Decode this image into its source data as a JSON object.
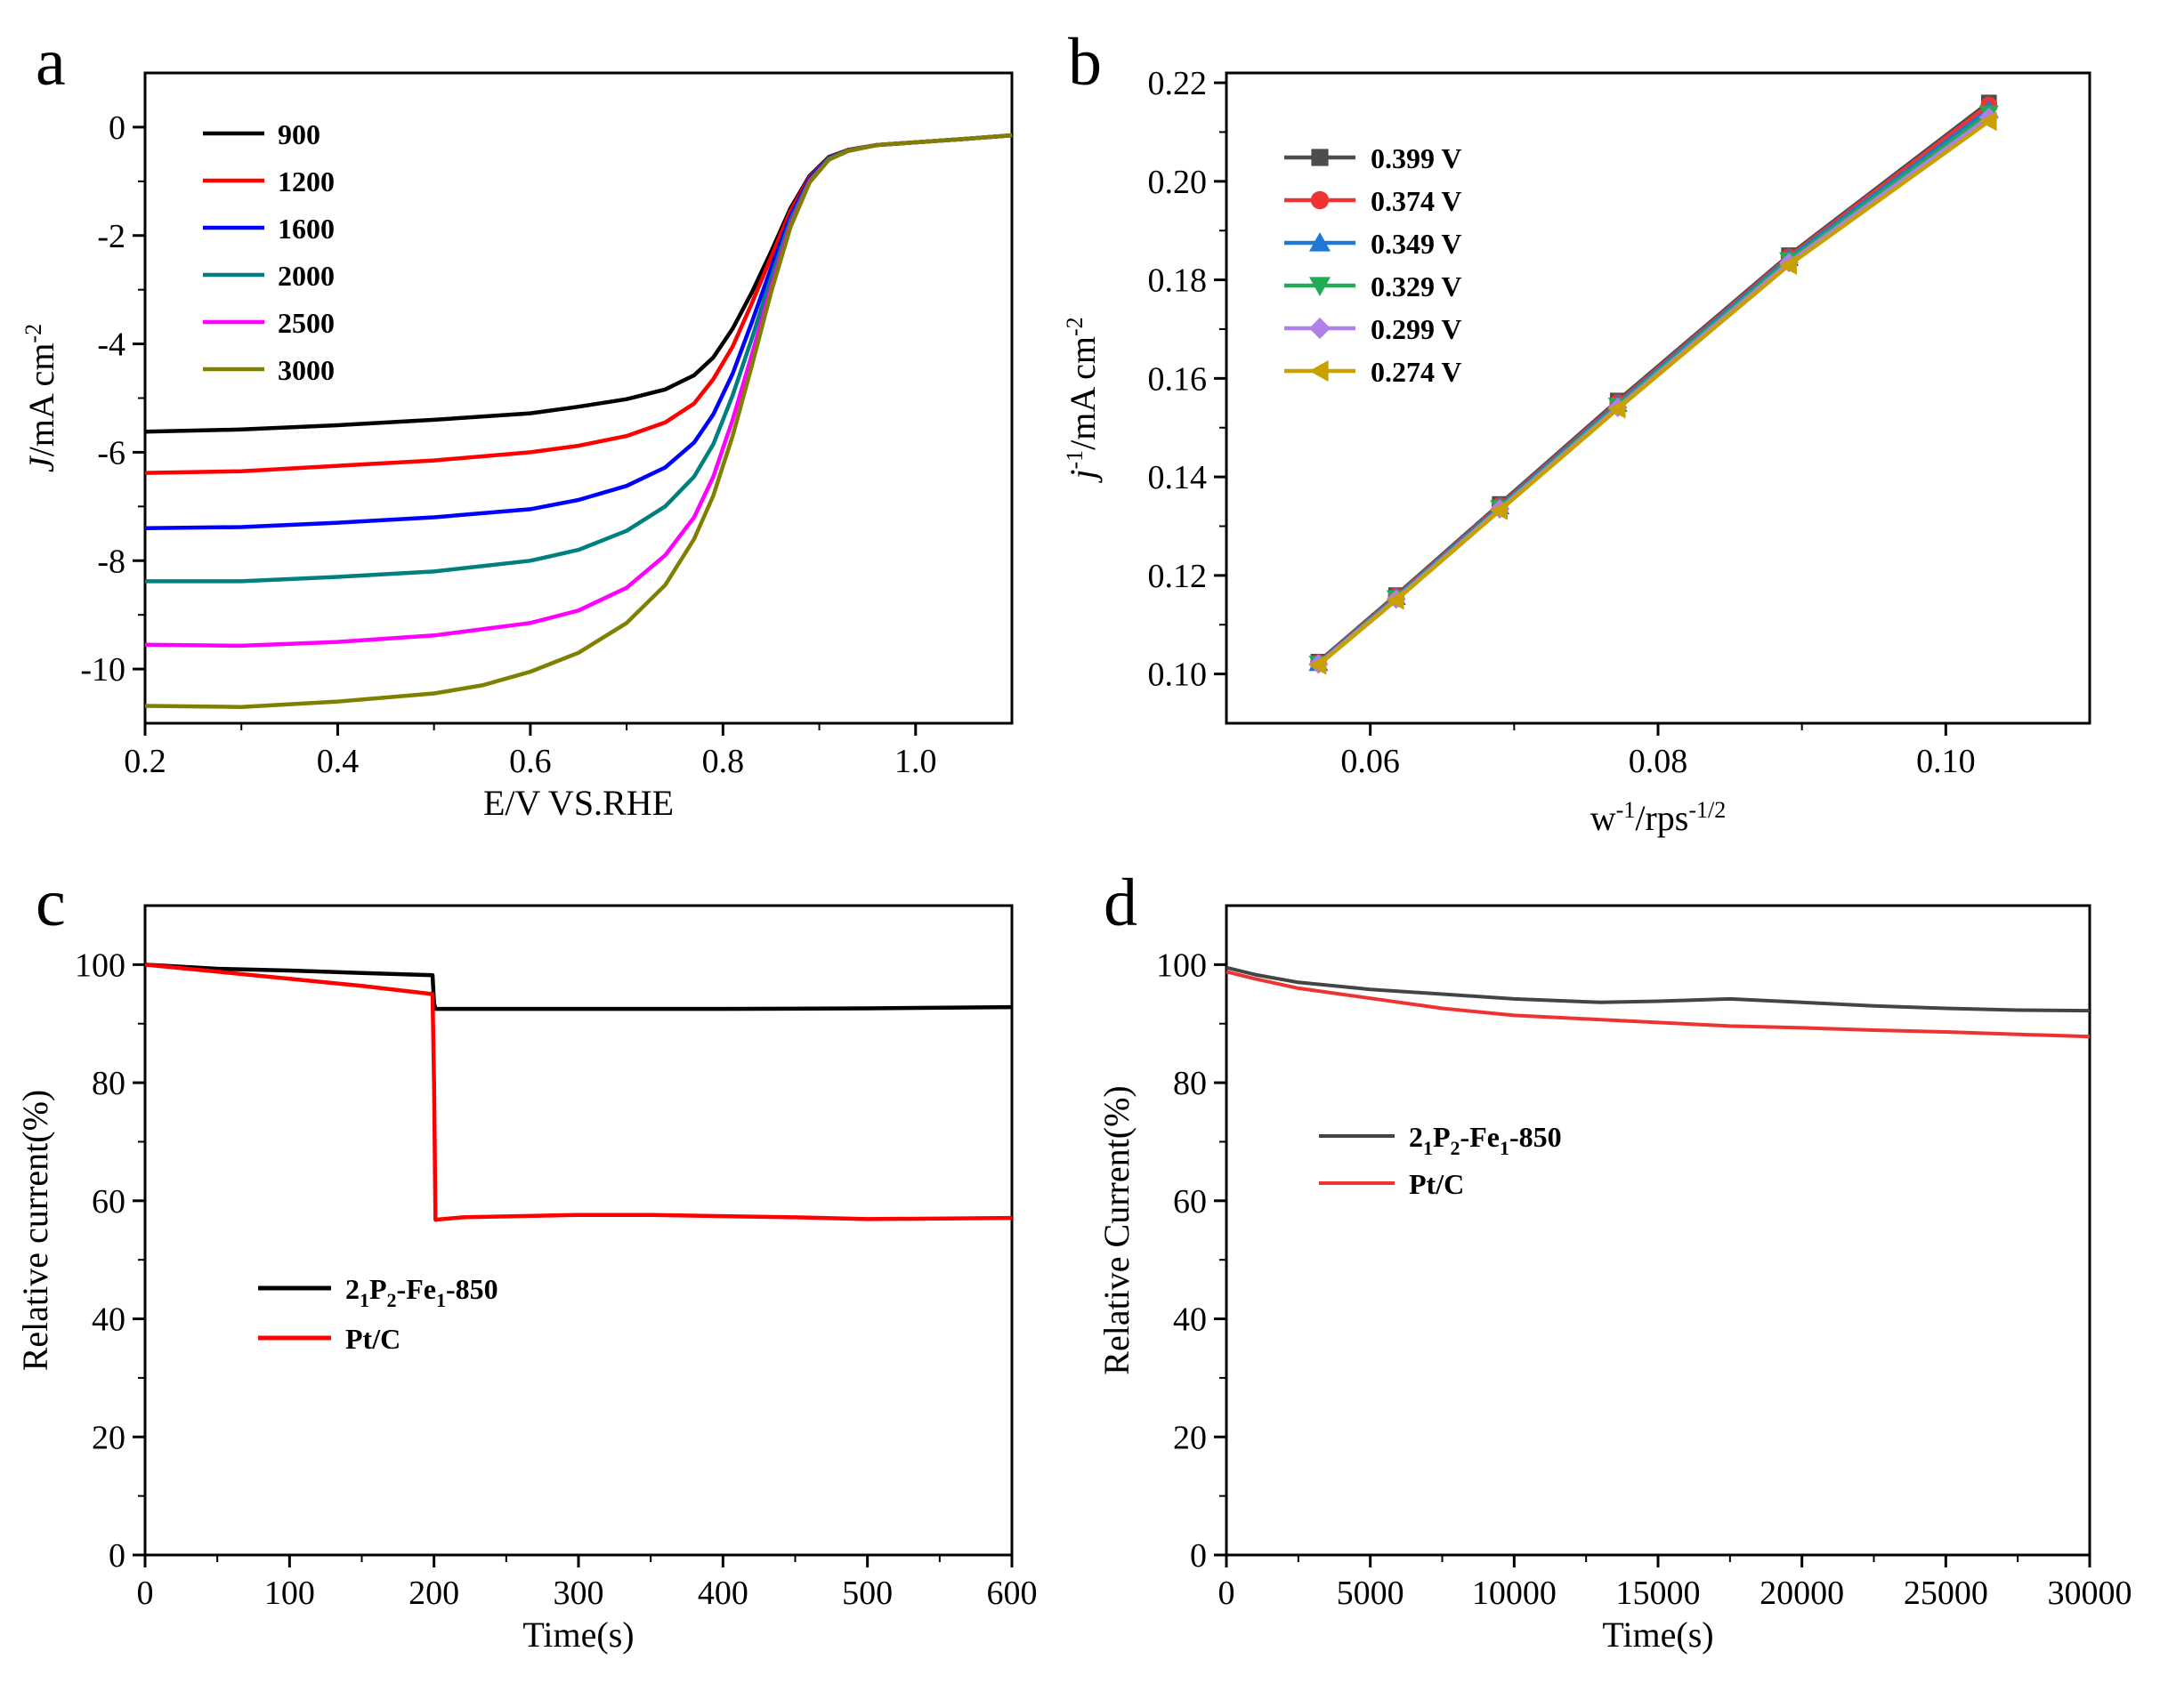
{
  "chart_data": [
    {
      "panel": "a",
      "type": "line",
      "xlabel": "E/V VS.RHE",
      "ylabel_italic": "J",
      "ylabel_unit": "/mA cm",
      "ylabel_sup": "-2",
      "xlim": [
        0.2,
        1.1
      ],
      "ylim": [
        -11,
        1
      ],
      "xticks": [
        0.2,
        0.4,
        0.6,
        0.8,
        1.0
      ],
      "xtick_labels": [
        "0.2",
        "0.4",
        "0.6",
        "0.8",
        "1.0"
      ],
      "yticks": [
        -10,
        -8,
        -6,
        -4,
        -2,
        0
      ],
      "ytick_labels": [
        "-10",
        "-8",
        "-6",
        "-4",
        "-2",
        "0"
      ],
      "legend_position": "top-left",
      "series": [
        {
          "name": "900",
          "color": "#000000",
          "points": [
            [
              0.2,
              -5.62
            ],
            [
              0.3,
              -5.58
            ],
            [
              0.4,
              -5.5
            ],
            [
              0.5,
              -5.4
            ],
            [
              0.6,
              -5.28
            ],
            [
              0.65,
              -5.16
            ],
            [
              0.7,
              -5.02
            ],
            [
              0.74,
              -4.84
            ],
            [
              0.77,
              -4.58
            ],
            [
              0.79,
              -4.25
            ],
            [
              0.81,
              -3.72
            ],
            [
              0.83,
              -3.05
            ],
            [
              0.85,
              -2.3
            ],
            [
              0.87,
              -1.5
            ],
            [
              0.89,
              -0.9
            ],
            [
              0.91,
              -0.55
            ],
            [
              0.93,
              -0.42
            ],
            [
              0.96,
              -0.33
            ],
            [
              1.0,
              -0.28
            ],
            [
              1.05,
              -0.22
            ],
            [
              1.1,
              -0.15
            ]
          ]
        },
        {
          "name": "1200",
          "color": "#ff0000",
          "points": [
            [
              0.2,
              -6.38
            ],
            [
              0.3,
              -6.35
            ],
            [
              0.4,
              -6.25
            ],
            [
              0.5,
              -6.15
            ],
            [
              0.6,
              -6.0
            ],
            [
              0.65,
              -5.88
            ],
            [
              0.7,
              -5.7
            ],
            [
              0.74,
              -5.45
            ],
            [
              0.77,
              -5.1
            ],
            [
              0.79,
              -4.65
            ],
            [
              0.81,
              -4.05
            ],
            [
              0.83,
              -3.25
            ],
            [
              0.85,
              -2.4
            ],
            [
              0.87,
              -1.55
            ],
            [
              0.89,
              -0.92
            ],
            [
              0.91,
              -0.56
            ],
            [
              0.93,
              -0.42
            ],
            [
              0.96,
              -0.33
            ],
            [
              1.0,
              -0.28
            ],
            [
              1.05,
              -0.22
            ],
            [
              1.1,
              -0.15
            ]
          ]
        },
        {
          "name": "1600",
          "color": "#0000ff",
          "points": [
            [
              0.2,
              -7.4
            ],
            [
              0.3,
              -7.38
            ],
            [
              0.4,
              -7.3
            ],
            [
              0.5,
              -7.2
            ],
            [
              0.6,
              -7.05
            ],
            [
              0.65,
              -6.88
            ],
            [
              0.7,
              -6.62
            ],
            [
              0.74,
              -6.28
            ],
            [
              0.77,
              -5.82
            ],
            [
              0.79,
              -5.3
            ],
            [
              0.81,
              -4.55
            ],
            [
              0.83,
              -3.6
            ],
            [
              0.85,
              -2.6
            ],
            [
              0.87,
              -1.65
            ],
            [
              0.89,
              -0.95
            ],
            [
              0.91,
              -0.57
            ],
            [
              0.93,
              -0.43
            ],
            [
              0.96,
              -0.33
            ],
            [
              1.0,
              -0.28
            ],
            [
              1.05,
              -0.22
            ],
            [
              1.1,
              -0.15
            ]
          ]
        },
        {
          "name": "2000",
          "color": "#007f7f",
          "points": [
            [
              0.2,
              -8.38
            ],
            [
              0.3,
              -8.38
            ],
            [
              0.4,
              -8.3
            ],
            [
              0.5,
              -8.2
            ],
            [
              0.6,
              -8.0
            ],
            [
              0.65,
              -7.8
            ],
            [
              0.7,
              -7.45
            ],
            [
              0.74,
              -7.0
            ],
            [
              0.77,
              -6.45
            ],
            [
              0.79,
              -5.85
            ],
            [
              0.81,
              -4.95
            ],
            [
              0.83,
              -3.9
            ],
            [
              0.85,
              -2.78
            ],
            [
              0.87,
              -1.72
            ],
            [
              0.89,
              -0.98
            ],
            [
              0.91,
              -0.58
            ],
            [
              0.93,
              -0.43
            ],
            [
              0.96,
              -0.33
            ],
            [
              1.0,
              -0.28
            ],
            [
              1.05,
              -0.22
            ],
            [
              1.1,
              -0.15
            ]
          ]
        },
        {
          "name": "2500",
          "color": "#ff00ff",
          "points": [
            [
              0.2,
              -9.55
            ],
            [
              0.3,
              -9.57
            ],
            [
              0.4,
              -9.5
            ],
            [
              0.5,
              -9.38
            ],
            [
              0.6,
              -9.15
            ],
            [
              0.65,
              -8.92
            ],
            [
              0.7,
              -8.5
            ],
            [
              0.74,
              -7.9
            ],
            [
              0.77,
              -7.2
            ],
            [
              0.79,
              -6.45
            ],
            [
              0.81,
              -5.4
            ],
            [
              0.83,
              -4.2
            ],
            [
              0.85,
              -2.95
            ],
            [
              0.87,
              -1.8
            ],
            [
              0.89,
              -1.0
            ],
            [
              0.91,
              -0.6
            ],
            [
              0.93,
              -0.44
            ],
            [
              0.96,
              -0.33
            ],
            [
              1.0,
              -0.28
            ],
            [
              1.05,
              -0.22
            ],
            [
              1.1,
              -0.15
            ]
          ]
        },
        {
          "name": "3000",
          "color": "#808000",
          "points": [
            [
              0.2,
              -10.68
            ],
            [
              0.3,
              -10.7
            ],
            [
              0.4,
              -10.6
            ],
            [
              0.5,
              -10.45
            ],
            [
              0.55,
              -10.3
            ],
            [
              0.6,
              -10.05
            ],
            [
              0.65,
              -9.7
            ],
            [
              0.7,
              -9.15
            ],
            [
              0.74,
              -8.45
            ],
            [
              0.77,
              -7.6
            ],
            [
              0.79,
              -6.8
            ],
            [
              0.81,
              -5.7
            ],
            [
              0.83,
              -4.4
            ],
            [
              0.85,
              -3.05
            ],
            [
              0.87,
              -1.85
            ],
            [
              0.89,
              -1.02
            ],
            [
              0.91,
              -0.6
            ],
            [
              0.93,
              -0.44
            ],
            [
              0.96,
              -0.33
            ],
            [
              1.0,
              -0.28
            ],
            [
              1.05,
              -0.22
            ],
            [
              1.1,
              -0.15
            ]
          ]
        }
      ]
    },
    {
      "panel": "b",
      "type": "line",
      "xlabel_base": "w",
      "xlabel_sup1": "-1",
      "xlabel_mid": "/rps",
      "xlabel_sup2": "-1/2",
      "ylabel_italic": "j",
      "ylabel_sup1": "-1",
      "ylabel_unit": "/mA cm",
      "ylabel_sup2": "-2",
      "xlim": [
        0.05,
        0.11
      ],
      "ylim": [
        0.09,
        0.222
      ],
      "xticks": [
        0.06,
        0.08,
        0.1
      ],
      "xtick_labels": [
        "0.06",
        "0.08",
        "0.10"
      ],
      "yticks": [
        0.1,
        0.12,
        0.14,
        0.16,
        0.18,
        0.2,
        0.22
      ],
      "ytick_labels": [
        "0.10",
        "0.12",
        "0.14",
        "0.16",
        "0.18",
        "0.20",
        "0.22"
      ],
      "legend_position": "top-left",
      "x": [
        0.0564,
        0.0618,
        0.069,
        0.0772,
        0.0891,
        0.103
      ],
      "series": [
        {
          "name": "0.399 V",
          "color": "#4d4d4d",
          "marker": "square",
          "values": [
            0.1025,
            0.116,
            0.1345,
            0.1555,
            0.185,
            0.216
          ]
        },
        {
          "name": "0.374 V",
          "color": "#ee3333",
          "marker": "circle",
          "values": [
            0.1023,
            0.1158,
            0.1342,
            0.1551,
            0.1847,
            0.2155
          ]
        },
        {
          "name": "0.349 V",
          "color": "#1f77d6",
          "marker": "triangle-up",
          "values": [
            0.1022,
            0.1156,
            0.134,
            0.1548,
            0.1844,
            0.2145
          ]
        },
        {
          "name": "0.329 V",
          "color": "#22aa55",
          "marker": "triangle-down",
          "values": [
            0.1021,
            0.1154,
            0.1337,
            0.1545,
            0.184,
            0.2138
          ]
        },
        {
          "name": "0.299 V",
          "color": "#b07fe8",
          "marker": "diamond",
          "values": [
            0.102,
            0.1152,
            0.1335,
            0.1541,
            0.1835,
            0.213
          ]
        },
        {
          "name": "0.274 V",
          "color": "#c8a000",
          "marker": "triangle-left",
          "values": [
            0.1018,
            0.115,
            0.1332,
            0.1538,
            0.183,
            0.2122
          ]
        }
      ]
    },
    {
      "panel": "c",
      "type": "line",
      "xlabel": "Time(s)",
      "ylabel": "Relative current(%)",
      "xlim": [
        0,
        600
      ],
      "ylim": [
        0,
        110
      ],
      "xticks": [
        0,
        100,
        200,
        300,
        400,
        500,
        600
      ],
      "xtick_labels": [
        "0",
        "100",
        "200",
        "300",
        "400",
        "500",
        "600"
      ],
      "yticks": [
        0,
        20,
        40,
        60,
        80,
        100
      ],
      "ytick_labels": [
        "0",
        "20",
        "40",
        "60",
        "80",
        "100"
      ],
      "legend_position": "center-left",
      "series": [
        {
          "name_base": "2",
          "name_sub1": "1",
          "name_p": "P",
          "name_sub2": "2",
          "name_fe": "-Fe",
          "name_sub3": "1",
          "name_tail": "-850",
          "color": "#000000",
          "points": [
            [
              0,
              100
            ],
            [
              50,
              99.3
            ],
            [
              100,
              99.0
            ],
            [
              150,
              98.6
            ],
            [
              199,
              98.2
            ],
            [
              200,
              93.5
            ],
            [
              201,
              92.5
            ],
            [
              300,
              92.5
            ],
            [
              400,
              92.5
            ],
            [
              500,
              92.6
            ],
            [
              600,
              92.8
            ]
          ]
        },
        {
          "name": "Pt/C",
          "color": "#ff0000",
          "points": [
            [
              0,
              100
            ],
            [
              50,
              98.8
            ],
            [
              100,
              97.6
            ],
            [
              150,
              96.4
            ],
            [
              199,
              95.0
            ],
            [
              200,
              80
            ],
            [
              201,
              56.8
            ],
            [
              220,
              57.2
            ],
            [
              300,
              57.6
            ],
            [
              350,
              57.6
            ],
            [
              400,
              57.4
            ],
            [
              450,
              57.2
            ],
            [
              500,
              56.9
            ],
            [
              600,
              57.1
            ]
          ]
        }
      ]
    },
    {
      "panel": "d",
      "type": "line",
      "xlabel": "Time(s)",
      "ylabel": "Relative Current(%)",
      "xlim": [
        0,
        30000
      ],
      "ylim": [
        0,
        110
      ],
      "xticks": [
        0,
        5000,
        10000,
        15000,
        20000,
        25000,
        30000
      ],
      "xtick_labels": [
        "0",
        "5000",
        "10000",
        "15000",
        "20000",
        "25000",
        "30000"
      ],
      "yticks": [
        0,
        20,
        40,
        60,
        80,
        100
      ],
      "ytick_labels": [
        "0",
        "20",
        "40",
        "60",
        "80",
        "100"
      ],
      "legend_position": "center-left",
      "series": [
        {
          "name_base": "2",
          "name_sub1": "1",
          "name_p": "P",
          "name_sub2": "2",
          "name_fe": "-Fe",
          "name_sub3": "1",
          "name_tail": "-850",
          "color": "#444444",
          "points": [
            [
              0,
              99.5
            ],
            [
              1000,
              98.3
            ],
            [
              2500,
              97.0
            ],
            [
              5000,
              95.8
            ],
            [
              7500,
              95.0
            ],
            [
              10000,
              94.2
            ],
            [
              13000,
              93.6
            ],
            [
              15000,
              93.8
            ],
            [
              17500,
              94.2
            ],
            [
              20000,
              93.6
            ],
            [
              22500,
              93.0
            ],
            [
              25000,
              92.6
            ],
            [
              27500,
              92.3
            ],
            [
              30000,
              92.2
            ]
          ]
        },
        {
          "name": "Pt/C",
          "color": "#ee3333",
          "points": [
            [
              0,
              98.8
            ],
            [
              1000,
              97.6
            ],
            [
              2500,
              96.0
            ],
            [
              5000,
              94.3
            ],
            [
              7500,
              92.6
            ],
            [
              10000,
              91.4
            ],
            [
              12500,
              90.8
            ],
            [
              15000,
              90.2
            ],
            [
              17500,
              89.6
            ],
            [
              20000,
              89.3
            ],
            [
              22500,
              88.9
            ],
            [
              25000,
              88.6
            ],
            [
              27500,
              88.2
            ],
            [
              30000,
              87.8
            ]
          ]
        }
      ]
    }
  ]
}
